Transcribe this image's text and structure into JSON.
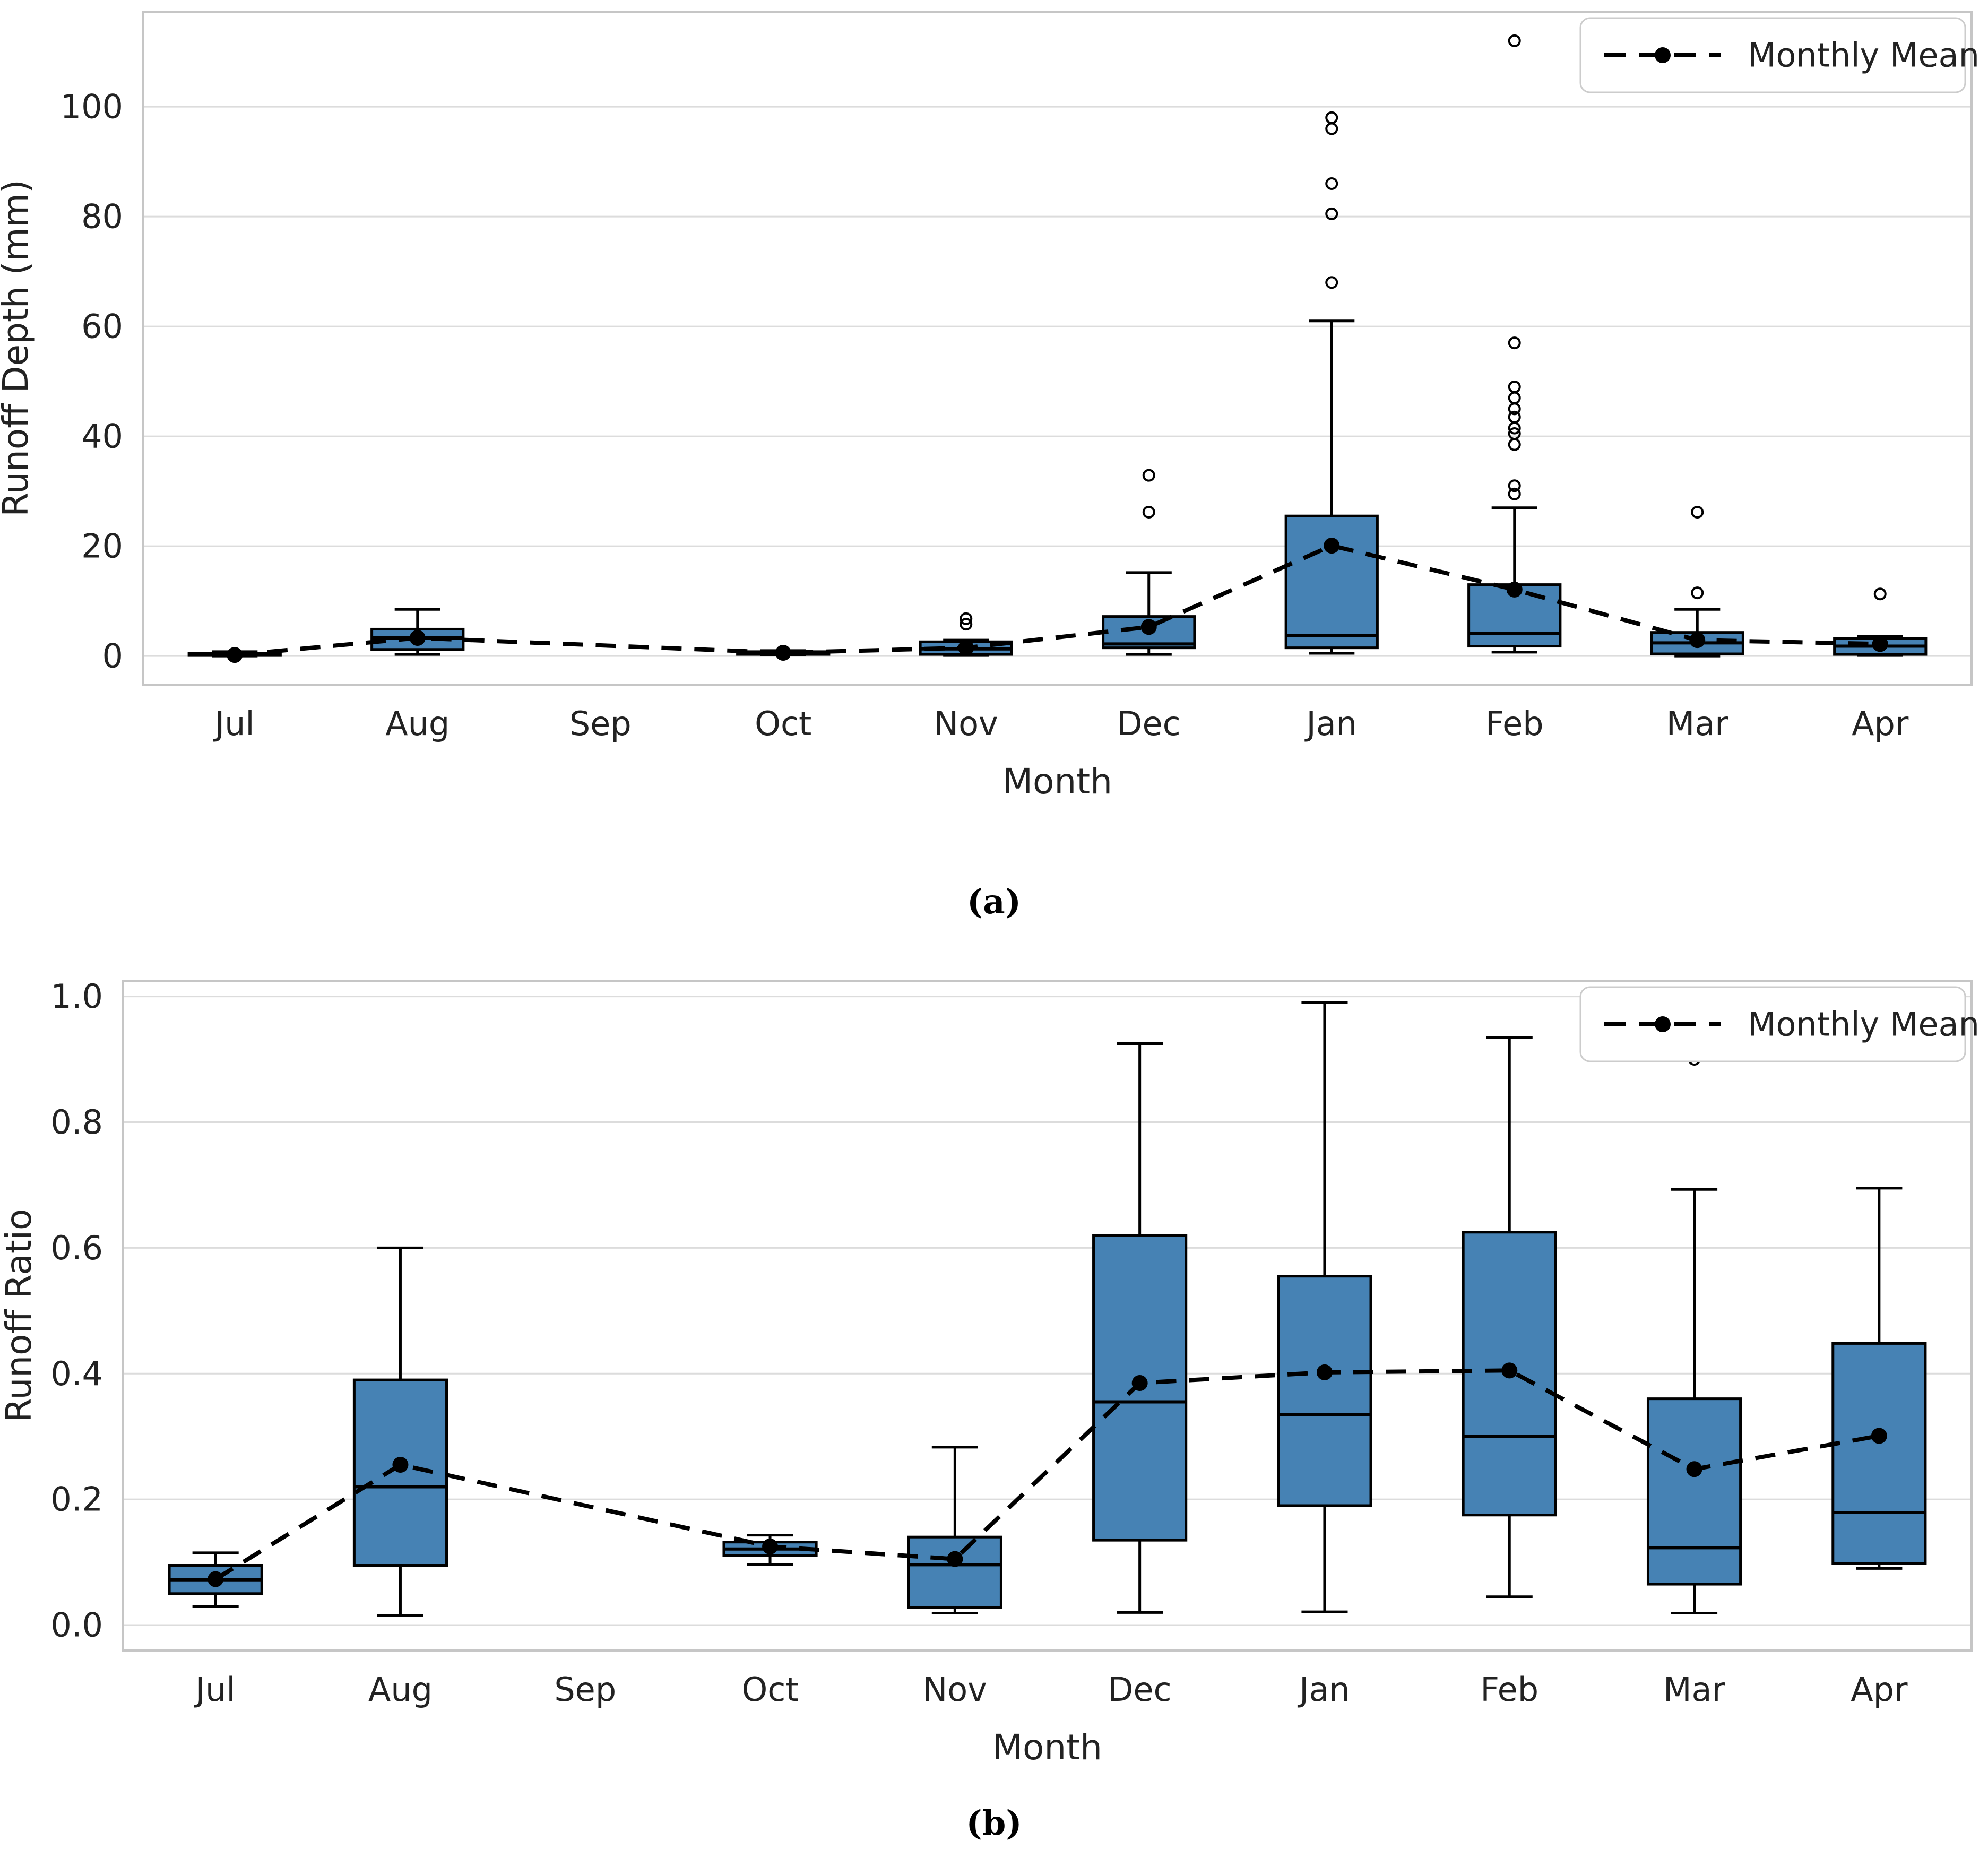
{
  "legend": {
    "label": "Monthly Mean"
  },
  "captions": {
    "a": "(a)",
    "b": "(b)"
  },
  "months": [
    "Jul",
    "Aug",
    "Sep",
    "Oct",
    "Nov",
    "Dec",
    "Jan",
    "Feb",
    "Mar",
    "Apr"
  ],
  "colors": {
    "box_fill": "#4682B4",
    "box_edge": "#000000",
    "median": "#000000",
    "whisker": "#000000",
    "mean_line": "#000000",
    "grid": "#dcdcdc",
    "spine": "#c6c6c6",
    "background": "#ffffff",
    "text": "#222222"
  },
  "chart_data": [
    {
      "type": "boxplot",
      "panel": "a",
      "xlabel": "Month",
      "ylabel": "Runoff Depth (mm)",
      "legend": "Monthly Mean",
      "legend_position": "upper right",
      "grid": true,
      "ylim": [
        -5.2,
        117.3
      ],
      "yticks": [
        0,
        20,
        40,
        60,
        80,
        100
      ],
      "ytick_labels": [
        "0",
        "20",
        "40",
        "60",
        "80",
        "100"
      ],
      "categories": [
        "Jul",
        "Aug",
        "Sep",
        "Oct",
        "Nov",
        "Dec",
        "Jan",
        "Feb",
        "Mar",
        "Apr"
      ],
      "boxes": [
        {
          "month": "Jul",
          "q1": 0.1,
          "median": 0.3,
          "q3": 0.5,
          "whisker_low": 0.0,
          "whisker_high": 0.8,
          "outliers": [],
          "mean": 0.2
        },
        {
          "month": "Aug",
          "q1": 1.2,
          "median": 3.3,
          "q3": 4.9,
          "whisker_low": 0.3,
          "whisker_high": 8.5,
          "outliers": [],
          "mean": 3.3
        },
        null,
        {
          "month": "Oct",
          "q1": 0.3,
          "median": 0.5,
          "q3": 0.8,
          "whisker_low": 0.2,
          "whisker_high": 1.0,
          "outliers": [],
          "mean": 0.6
        },
        {
          "month": "Nov",
          "q1": 0.3,
          "median": 1.3,
          "q3": 2.6,
          "whisker_low": 0.1,
          "whisker_high": 2.9,
          "outliers": [
            5.8,
            6.8
          ],
          "mean": 1.5
        },
        {
          "month": "Dec",
          "q1": 1.5,
          "median": 2.2,
          "q3": 7.2,
          "whisker_low": 0.3,
          "whisker_high": 15.2,
          "outliers": [
            26.2,
            32.9
          ],
          "mean": 5.3
        },
        {
          "month": "Jan",
          "q1": 1.5,
          "median": 3.7,
          "q3": 25.5,
          "whisker_low": 0.5,
          "whisker_high": 61.0,
          "outliers": [
            68.0,
            80.5,
            86.0,
            96.0,
            98.0
          ],
          "mean": 20.1
        },
        {
          "month": "Feb",
          "q1": 1.8,
          "median": 4.1,
          "q3": 13.0,
          "whisker_low": 0.7,
          "whisker_high": 27.0,
          "outliers": [
            29.5,
            31.0,
            38.5,
            40.5,
            41.5,
            43.5,
            45.0,
            47.0,
            49.0,
            57.0,
            112.0
          ],
          "mean": 12.1
        },
        {
          "month": "Mar",
          "q1": 0.4,
          "median": 2.4,
          "q3": 4.3,
          "whisker_low": 0.0,
          "whisker_high": 8.5,
          "outliers": [
            11.5,
            26.2
          ],
          "mean": 2.9
        },
        {
          "month": "Apr",
          "q1": 0.3,
          "median": 1.8,
          "q3": 3.2,
          "whisker_low": 0.1,
          "whisker_high": 3.6,
          "outliers": [
            11.3
          ],
          "mean": 2.2
        }
      ],
      "monthly_mean": [
        0.2,
        3.3,
        null,
        0.6,
        1.5,
        5.3,
        20.1,
        12.1,
        2.9,
        2.2
      ]
    },
    {
      "type": "boxplot",
      "panel": "b",
      "xlabel": "Month",
      "ylabel": "Runoff Ratio",
      "legend": "Monthly Mean",
      "legend_position": "upper right",
      "grid": true,
      "ylim": [
        -0.0405,
        1.025
      ],
      "yticks": [
        0.0,
        0.2,
        0.4,
        0.6,
        0.8,
        1.0
      ],
      "ytick_labels": [
        "0.0",
        "0.2",
        "0.4",
        "0.6",
        "0.8",
        "1.0"
      ],
      "categories": [
        "Jul",
        "Aug",
        "Sep",
        "Oct",
        "Nov",
        "Dec",
        "Jan",
        "Feb",
        "Mar",
        "Apr"
      ],
      "boxes": [
        {
          "month": "Jul",
          "q1": 0.05,
          "median": 0.072,
          "q3": 0.095,
          "whisker_low": 0.03,
          "whisker_high": 0.115,
          "outliers": [],
          "mean": 0.073
        },
        {
          "month": "Aug",
          "q1": 0.095,
          "median": 0.22,
          "q3": 0.39,
          "whisker_low": 0.015,
          "whisker_high": 0.6,
          "outliers": [],
          "mean": 0.255
        },
        null,
        {
          "month": "Oct",
          "q1": 0.111,
          "median": 0.121,
          "q3": 0.132,
          "whisker_low": 0.096,
          "whisker_high": 0.143,
          "outliers": [],
          "mean": 0.125
        },
        {
          "month": "Nov",
          "q1": 0.028,
          "median": 0.096,
          "q3": 0.14,
          "whisker_low": 0.019,
          "whisker_high": 0.283,
          "outliers": [],
          "mean": 0.105
        },
        {
          "month": "Dec",
          "q1": 0.135,
          "median": 0.355,
          "q3": 0.62,
          "whisker_low": 0.02,
          "whisker_high": 0.925,
          "outliers": [],
          "mean": 0.385
        },
        {
          "month": "Jan",
          "q1": 0.19,
          "median": 0.335,
          "q3": 0.555,
          "whisker_low": 0.021,
          "whisker_high": 0.99,
          "outliers": [],
          "mean": 0.402
        },
        {
          "month": "Feb",
          "q1": 0.175,
          "median": 0.3,
          "q3": 0.625,
          "whisker_low": 0.045,
          "whisker_high": 0.935,
          "outliers": [],
          "mean": 0.405
        },
        {
          "month": "Mar",
          "q1": 0.065,
          "median": 0.123,
          "q3": 0.36,
          "whisker_low": 0.019,
          "whisker_high": 0.693,
          "outliers": [
            0.9
          ],
          "mean": 0.248
        },
        {
          "month": "Apr",
          "q1": 0.098,
          "median": 0.179,
          "q3": 0.448,
          "whisker_low": 0.09,
          "whisker_high": 0.695,
          "outliers": [],
          "mean": 0.301
        }
      ],
      "monthly_mean": [
        0.073,
        0.255,
        null,
        0.125,
        0.105,
        0.385,
        0.402,
        0.405,
        0.248,
        0.301
      ]
    }
  ]
}
